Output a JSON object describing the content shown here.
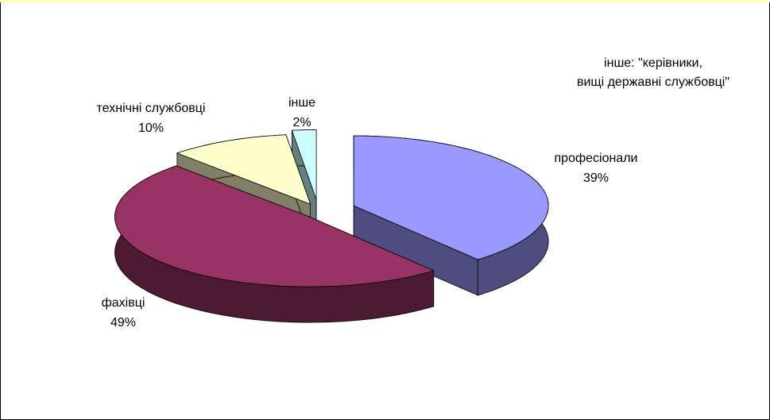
{
  "chart_data": {
    "type": "pie3d",
    "categories": [
      "професіонали",
      "фахівці",
      "технічні службовці",
      "інше"
    ],
    "values": [
      39,
      49,
      10,
      2
    ],
    "value_labels": [
      "39%",
      "49%",
      "10%",
      "2%"
    ],
    "colors": [
      "#9999ff",
      "#993366",
      "#ffffcc",
      "#ccffff"
    ],
    "side_colors": [
      "#4d4d80",
      "#4d1a33",
      "#808066",
      "#668080"
    ],
    "annotation": [
      "інше: \"керівники,",
      "вищі державні службовці\""
    ]
  }
}
